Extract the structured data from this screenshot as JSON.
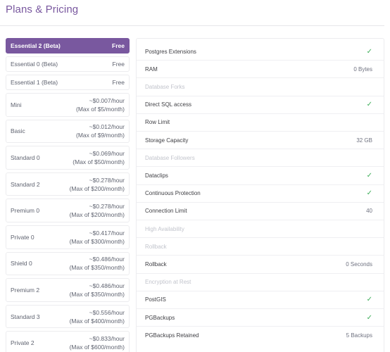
{
  "header": {
    "title": "Plans & Pricing"
  },
  "plans": [
    {
      "name": "Essential 2 (Beta)",
      "price_line1": "Free",
      "price_line2": "",
      "selected": true
    },
    {
      "name": "Essential 0 (Beta)",
      "price_line1": "Free",
      "price_line2": "",
      "selected": false
    },
    {
      "name": "Essential 1 (Beta)",
      "price_line1": "Free",
      "price_line2": "",
      "selected": false
    },
    {
      "name": "Mini",
      "price_line1": "~$0.007/hour",
      "price_line2": "(Max of $5/month)",
      "selected": false
    },
    {
      "name": "Basic",
      "price_line1": "~$0.012/hour",
      "price_line2": "(Max of $9/month)",
      "selected": false
    },
    {
      "name": "Standard 0",
      "price_line1": "~$0.069/hour",
      "price_line2": "(Max of $50/month)",
      "selected": false
    },
    {
      "name": "Standard 2",
      "price_line1": "~$0.278/hour",
      "price_line2": "(Max of $200/month)",
      "selected": false
    },
    {
      "name": "Premium 0",
      "price_line1": "~$0.278/hour",
      "price_line2": "(Max of $200/month)",
      "selected": false
    },
    {
      "name": "Private 0",
      "price_line1": "~$0.417/hour",
      "price_line2": "(Max of $300/month)",
      "selected": false
    },
    {
      "name": "Shield 0",
      "price_line1": "~$0.486/hour",
      "price_line2": "(Max of $350/month)",
      "selected": false
    },
    {
      "name": "Premium 2",
      "price_line1": "~$0.486/hour",
      "price_line2": "(Max of $350/month)",
      "selected": false
    },
    {
      "name": "Standard 3",
      "price_line1": "~$0.556/hour",
      "price_line2": "(Max of $400/month)",
      "selected": false
    },
    {
      "name": "Private 2",
      "price_line1": "~$0.833/hour",
      "price_line2": "(Max of $600/month)",
      "selected": false
    }
  ],
  "features": [
    {
      "label": "Postgres Extensions",
      "value": "",
      "check": true,
      "disabled": false
    },
    {
      "label": "RAM",
      "value": "0 Bytes",
      "check": false,
      "disabled": false
    },
    {
      "label": "Database Forks",
      "value": "",
      "check": false,
      "disabled": true
    },
    {
      "label": "Direct SQL access",
      "value": "",
      "check": true,
      "disabled": false
    },
    {
      "label": "Row Limit",
      "value": "",
      "check": false,
      "disabled": false
    },
    {
      "label": "Storage Capacity",
      "value": "32 GB",
      "check": false,
      "disabled": false
    },
    {
      "label": "Database Followers",
      "value": "",
      "check": false,
      "disabled": true
    },
    {
      "label": "Dataclips",
      "value": "",
      "check": true,
      "disabled": false
    },
    {
      "label": "Continuous Protection",
      "value": "",
      "check": true,
      "disabled": false
    },
    {
      "label": "Connection Limit",
      "value": "40",
      "check": false,
      "disabled": false
    },
    {
      "label": "High Availability",
      "value": "",
      "check": false,
      "disabled": true
    },
    {
      "label": "Rollback",
      "value": "",
      "check": false,
      "disabled": true
    },
    {
      "label": "Rollback",
      "value": "0 Seconds",
      "check": false,
      "disabled": false
    },
    {
      "label": "Encryption at Rest",
      "value": "",
      "check": false,
      "disabled": true
    },
    {
      "label": "PostGIS",
      "value": "",
      "check": true,
      "disabled": false
    },
    {
      "label": "PGBackups",
      "value": "",
      "check": true,
      "disabled": false
    },
    {
      "label": "PGBackups Retained",
      "value": "5 Backups",
      "check": false,
      "disabled": false
    }
  ],
  "icons": {
    "check": "checkmark-icon"
  },
  "colors": {
    "accent": "#79589f",
    "check": "#3fae5a"
  }
}
